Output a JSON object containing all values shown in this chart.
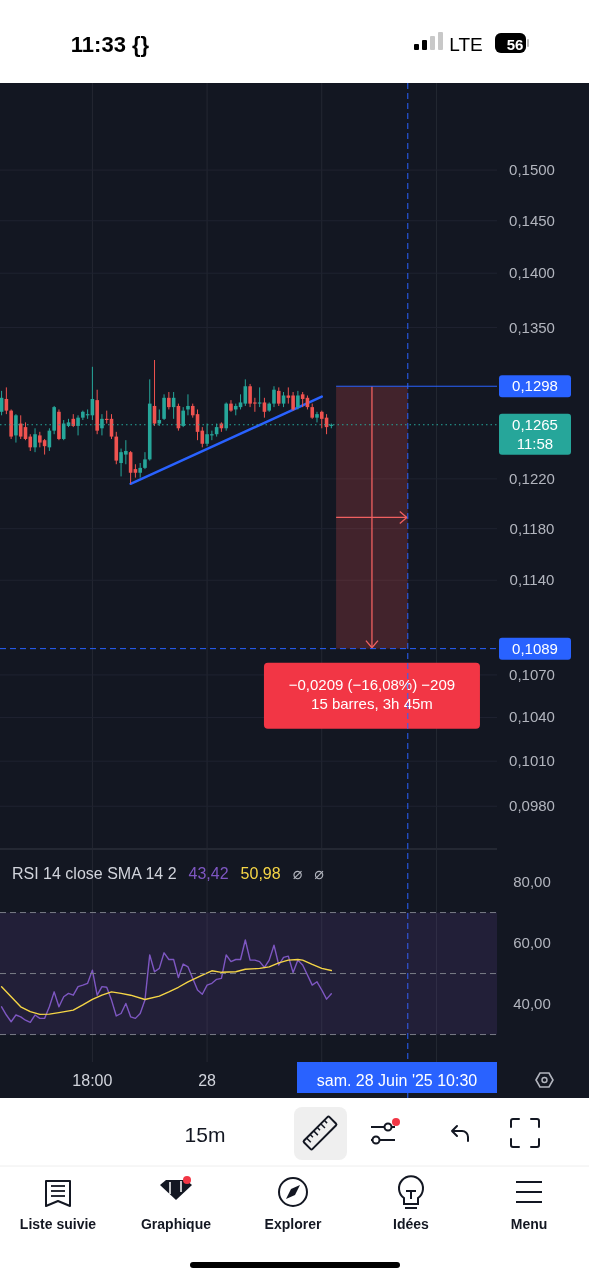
{
  "chart_data": [
    {
      "type": "candlestick",
      "log": true,
      "grid": true,
      "tick_labels": "y",
      "x": [
        "2025-06-27T13:15",
        "2025-06-27T13:30",
        "2025-06-27T13:45",
        "2025-06-27T14:00",
        "2025-06-27T14:15",
        "2025-06-27T14:30",
        "2025-06-27T14:45",
        "2025-06-27T15:00",
        "2025-06-27T15:15",
        "2025-06-27T15:30",
        "2025-06-27T15:45",
        "2025-06-27T16:00",
        "2025-06-27T16:15",
        "2025-06-27T16:30",
        "2025-06-27T16:45",
        "2025-06-27T17:00",
        "2025-06-27T17:15",
        "2025-06-27T17:30",
        "2025-06-27T17:45",
        "2025-06-27T18:00",
        "2025-06-27T18:15",
        "2025-06-27T18:30",
        "2025-06-27T18:45",
        "2025-06-27T19:00",
        "2025-06-27T19:15",
        "2025-06-27T19:30",
        "2025-06-27T19:45",
        "2025-06-27T20:00",
        "2025-06-27T20:15",
        "2025-06-27T20:30",
        "2025-06-27T20:45",
        "2025-06-27T21:00",
        "2025-06-27T21:15",
        "2025-06-27T21:30",
        "2025-06-27T21:45",
        "2025-06-27T22:00",
        "2025-06-27T22:15",
        "2025-06-27T22:30",
        "2025-06-27T22:45",
        "2025-06-27T23:00",
        "2025-06-27T23:15",
        "2025-06-27T23:30",
        "2025-06-27T23:45",
        "2025-06-28T00:00",
        "2025-06-28T00:15",
        "2025-06-28T00:30",
        "2025-06-28T00:45",
        "2025-06-28T01:00",
        "2025-06-28T01:15",
        "2025-06-28T01:30",
        "2025-06-28T01:45",
        "2025-06-28T02:00",
        "2025-06-28T02:15",
        "2025-06-28T02:30",
        "2025-06-28T02:45",
        "2025-06-28T03:00",
        "2025-06-28T03:15",
        "2025-06-28T03:30",
        "2025-06-28T03:45",
        "2025-06-28T04:00",
        "2025-06-28T04:15",
        "2025-06-28T04:30",
        "2025-06-28T04:45",
        "2025-06-28T05:00",
        "2025-06-28T05:15",
        "2025-06-28T05:30",
        "2025-06-28T05:45",
        "2025-06-28T06:00",
        "2025-06-28T06:15",
        "2025-06-28T06:30"
      ],
      "ohlc": [
        [
          0.1276,
          0.1294,
          0.1273,
          0.1288
        ],
        [
          0.1287,
          0.1297,
          0.1274,
          0.1277
        ],
        [
          0.1277,
          0.1278,
          0.1253,
          0.1255
        ],
        [
          0.1256,
          0.1274,
          0.125,
          0.1273
        ],
        [
          0.1266,
          0.1273,
          0.1253,
          0.1255
        ],
        [
          0.1263,
          0.1267,
          0.1252,
          0.1253
        ],
        [
          0.1255,
          0.1257,
          0.1243,
          0.1246
        ],
        [
          0.1246,
          0.1262,
          0.1242,
          0.1257
        ],
        [
          0.1256,
          0.1259,
          0.1246,
          0.125
        ],
        [
          0.1252,
          0.1253,
          0.124,
          0.1247
        ],
        [
          0.1246,
          0.1262,
          0.1243,
          0.126
        ],
        [
          0.126,
          0.1281,
          0.1257,
          0.128
        ],
        [
          0.1276,
          0.1278,
          0.1252,
          0.1253
        ],
        [
          0.1253,
          0.1269,
          0.1252,
          0.1266
        ],
        [
          0.1264,
          0.127,
          0.1263,
          0.1267
        ],
        [
          0.127,
          0.1274,
          0.1263,
          0.1264
        ],
        [
          0.1264,
          0.1273,
          0.1256,
          0.1271
        ],
        [
          0.1271,
          0.1277,
          0.1269,
          0.1276
        ],
        [
          0.1273,
          0.1278,
          0.127,
          0.1274
        ],
        [
          0.1273,
          0.1315,
          0.1269,
          0.1287
        ],
        [
          0.1286,
          0.1295,
          0.1257,
          0.126
        ],
        [
          0.1262,
          0.1274,
          0.1256,
          0.127
        ],
        [
          0.127,
          0.1277,
          0.1266,
          0.1269
        ],
        [
          0.127,
          0.1274,
          0.1253,
          0.1255
        ],
        [
          0.1255,
          0.1259,
          0.1232,
          0.1235
        ],
        [
          0.1233,
          0.1245,
          0.1222,
          0.1242
        ],
        [
          0.124,
          0.1252,
          0.1232,
          0.1243
        ],
        [
          0.1242,
          0.1243,
          0.1216,
          0.1225
        ],
        [
          0.1228,
          0.1232,
          0.1221,
          0.1225
        ],
        [
          0.1225,
          0.1233,
          0.1221,
          0.1229
        ],
        [
          0.1229,
          0.1242,
          0.1228,
          0.1236
        ],
        [
          0.1236,
          0.1304,
          0.1235,
          0.1283
        ],
        [
          0.1281,
          0.1321,
          0.1264,
          0.1266
        ],
        [
          0.1266,
          0.1278,
          0.1264,
          0.1269
        ],
        [
          0.127,
          0.1291,
          0.1269,
          0.1288
        ],
        [
          0.1288,
          0.1293,
          0.1278,
          0.128
        ],
        [
          0.128,
          0.1293,
          0.127,
          0.1288
        ],
        [
          0.1281,
          0.1283,
          0.126,
          0.1262
        ],
        [
          0.1264,
          0.128,
          0.1263,
          0.1277
        ],
        [
          0.1278,
          0.1291,
          0.1273,
          0.1281
        ],
        [
          0.1281,
          0.1283,
          0.1271,
          0.1273
        ],
        [
          0.1274,
          0.1278,
          0.1252,
          0.1259
        ],
        [
          0.126,
          0.1263,
          0.1246,
          0.1249
        ],
        [
          0.1249,
          0.1266,
          0.1247,
          0.1257
        ],
        [
          0.1256,
          0.126,
          0.1252,
          0.1257
        ],
        [
          0.1257,
          0.1266,
          0.1255,
          0.1263
        ],
        [
          0.1266,
          0.1267,
          0.1259,
          0.1262
        ],
        [
          0.1262,
          0.1284,
          0.126,
          0.1283
        ],
        [
          0.1283,
          0.1286,
          0.1276,
          0.1277
        ],
        [
          0.1278,
          0.1283,
          0.1273,
          0.1281
        ],
        [
          0.128,
          0.1291,
          0.1278,
          0.1284
        ],
        [
          0.1283,
          0.1304,
          0.1281,
          0.1298
        ],
        [
          0.1298,
          0.13,
          0.128,
          0.1283
        ],
        [
          0.1284,
          0.1288,
          0.1276,
          0.1283
        ],
        [
          0.1283,
          0.1297,
          0.128,
          0.1284
        ],
        [
          0.1284,
          0.1288,
          0.1271,
          0.1276
        ],
        [
          0.1277,
          0.1284,
          0.1276,
          0.1283
        ],
        [
          0.1283,
          0.1298,
          0.128,
          0.1295
        ],
        [
          0.1294,
          0.1297,
          0.1281,
          0.1283
        ],
        [
          0.1283,
          0.1293,
          0.128,
          0.129
        ],
        [
          0.129,
          0.1297,
          0.1283,
          0.1288
        ],
        [
          0.129,
          0.1293,
          0.1277,
          0.1278
        ],
        [
          0.128,
          0.1294,
          0.1278,
          0.129
        ],
        [
          0.1291,
          0.1293,
          0.128,
          0.1287
        ],
        [
          0.1288,
          0.129,
          0.1278,
          0.128
        ],
        [
          0.128,
          0.1283,
          0.127,
          0.1271
        ],
        [
          0.1271,
          0.1276,
          0.1267,
          0.1274
        ],
        [
          0.1276,
          0.1277,
          0.1262,
          0.127
        ],
        [
          0.1271,
          0.1274,
          0.1257,
          0.1263
        ],
        [
          0.1264,
          0.1266,
          0.1262,
          0.1265
        ]
      ],
      "series": [
        {
          "type": "line",
          "color": "#2962ff",
          "x": [
            "2025-06-27T20:00",
            "2025-06-28T06:00"
          ],
          "values": [
            0.1216,
            0.1289
          ]
        }
      ],
      "xlim": [
        "2025-06-27T13:10",
        "2025-06-28T15:10"
      ],
      "ylim": [
        0.0953,
        0.159
      ],
      "xticks": [
        {
          "value": "2025-06-27T18:00",
          "label": null
        },
        {
          "value": "2025-06-28T00:00",
          "label": null
        },
        {
          "value": "2025-06-28T06:00",
          "label": null
        },
        {
          "value": "2025-06-28T12:00",
          "label": null
        }
      ],
      "yticks": [
        {
          "value": 0.098,
          "label": "0,0980"
        },
        {
          "value": 0.101,
          "label": "0,1010"
        },
        {
          "value": 0.104,
          "label": "0,1040"
        },
        {
          "value": 0.107,
          "label": "0,1070"
        },
        {
          "value": 0.114,
          "label": "0,1140"
        },
        {
          "value": 0.118,
          "label": "0,1180"
        },
        {
          "value": 0.122,
          "label": "0,1220"
        },
        {
          "value": 0.135,
          "label": "0,1350"
        },
        {
          "value": 0.14,
          "label": "0,1400"
        },
        {
          "value": 0.145,
          "label": "0,1450"
        },
        {
          "value": 0.15,
          "label": "0,1500"
        }
      ],
      "ref_lines": [
        {
          "axis": "y",
          "value": 0.1298,
          "label": "0,1298",
          "color": "#2962ff",
          "line_style": "solid"
        },
        {
          "axis": "y",
          "value": 0.1265,
          "label": "0,1265\n11:58",
          "color": "#26a69a",
          "line_style": "dotted"
        },
        {
          "axis": "y",
          "value": 0.1089,
          "label": "0,1089",
          "color": "#2962ff",
          "line_style": "dashed"
        },
        {
          "axis": "x",
          "value": "2025-06-28T10:30",
          "label": "sam. 28 Juin '25 10:30",
          "color": "#2962ff",
          "line_style": "dashed"
        }
      ],
      "annotations": [
        {
          "text": "−0,0209 (−16,08%) −209\n15 barres, 3h 45m",
          "x": "2025-06-28T10:30",
          "y": 0.1089
        }
      ]
    },
    {
      "type": "line",
      "title": "RSI 14 close SMA 14 2",
      "grid": "x",
      "x": [
        "2025-06-27T13:15",
        "2025-06-27T13:30",
        "2025-06-27T13:45",
        "2025-06-27T14:00",
        "2025-06-27T14:15",
        "2025-06-27T14:30",
        "2025-06-27T14:45",
        "2025-06-27T15:00",
        "2025-06-27T15:15",
        "2025-06-27T15:30",
        "2025-06-27T15:45",
        "2025-06-27T16:00",
        "2025-06-27T16:15",
        "2025-06-27T16:30",
        "2025-06-27T16:45",
        "2025-06-27T17:00",
        "2025-06-27T17:15",
        "2025-06-27T17:30",
        "2025-06-27T17:45",
        "2025-06-27T18:00",
        "2025-06-27T18:15",
        "2025-06-27T18:30",
        "2025-06-27T18:45",
        "2025-06-27T19:00",
        "2025-06-27T19:15",
        "2025-06-27T19:30",
        "2025-06-27T19:45",
        "2025-06-27T20:00",
        "2025-06-27T20:15",
        "2025-06-27T20:30",
        "2025-06-27T20:45",
        "2025-06-27T21:00",
        "2025-06-27T21:15",
        "2025-06-27T21:30",
        "2025-06-27T21:45",
        "2025-06-27T22:00",
        "2025-06-27T22:15",
        "2025-06-27T22:30",
        "2025-06-27T22:45",
        "2025-06-27T23:00",
        "2025-06-27T23:15",
        "2025-06-27T23:30",
        "2025-06-27T23:45",
        "2025-06-28T00:00",
        "2025-06-28T00:15",
        "2025-06-28T00:30",
        "2025-06-28T00:45",
        "2025-06-28T01:00",
        "2025-06-28T01:15",
        "2025-06-28T01:30",
        "2025-06-28T01:45",
        "2025-06-28T02:00",
        "2025-06-28T02:15",
        "2025-06-28T02:30",
        "2025-06-28T02:45",
        "2025-06-28T03:00",
        "2025-06-28T03:15",
        "2025-06-28T03:30",
        "2025-06-28T03:45",
        "2025-06-28T04:00",
        "2025-06-28T04:15",
        "2025-06-28T04:30",
        "2025-06-28T04:45",
        "2025-06-28T05:00",
        "2025-06-28T05:15",
        "2025-06-28T05:30",
        "2025-06-28T05:45",
        "2025-06-28T06:00",
        "2025-06-28T06:15",
        "2025-06-28T06:30"
      ],
      "series": [
        {
          "color": "#7e57c2",
          "values": [
            39.1,
            36.4,
            34.2,
            36.4,
            35.8,
            34.7,
            34.0,
            36.4,
            35.3,
            35.3,
            39.1,
            44.0,
            39.1,
            42.4,
            43.5,
            42.9,
            45.7,
            46.2,
            46.8,
            51.1,
            42.9,
            45.7,
            45.5,
            41.3,
            36.1,
            36.9,
            40.2,
            35.8,
            35.3,
            36.9,
            41.3,
            56.1,
            50.6,
            51.7,
            56.8,
            54.6,
            54.6,
            48.7,
            53.1,
            52.2,
            48.4,
            44.6,
            43.2,
            46.2,
            46.8,
            48.1,
            48.4,
            56.1,
            53.9,
            54.6,
            54.6,
            61.0,
            54.4,
            54.4,
            53.9,
            52.0,
            54.4,
            59.3,
            52.8,
            55.3,
            55.7,
            50.3,
            54.4,
            52.8,
            49.5,
            46.2,
            47.3,
            44.6,
            41.6,
            43.4
          ]
        },
        {
          "color": "#f5d546",
          "x": [
            "2025-06-27T13:15",
            "2025-06-27T13:45",
            "2025-06-27T14:15",
            "2025-06-27T14:45",
            "2025-06-27T15:15",
            "2025-06-27T15:45",
            "2025-06-27T16:15",
            "2025-06-27T17:00",
            "2025-06-27T17:30",
            "2025-06-27T18:00",
            "2025-06-27T18:30",
            "2025-06-27T19:00",
            "2025-06-27T19:30",
            "2025-06-27T20:00",
            "2025-06-27T20:45",
            "2025-06-27T21:30",
            "2025-06-27T22:00",
            "2025-06-27T22:30",
            "2025-06-27T23:00",
            "2025-06-27T23:45",
            "2025-06-28T00:15",
            "2025-06-28T00:45",
            "2025-06-28T01:30",
            "2025-06-28T02:00",
            "2025-06-28T02:45",
            "2025-06-28T03:15",
            "2025-06-28T03:45",
            "2025-06-28T04:15",
            "2025-06-28T04:45",
            "2025-06-28T05:00",
            "2025-06-28T05:30",
            "2025-06-28T06:00",
            "2025-06-28T06:30"
          ],
          "values": [
            45.7,
            42.4,
            39.1,
            37.5,
            36.6,
            36.7,
            37.2,
            38.0,
            39.7,
            41.5,
            42.9,
            44.0,
            43.5,
            42.9,
            41.5,
            42.6,
            44.0,
            45.5,
            47.3,
            49.5,
            50.9,
            50.4,
            50.6,
            51.4,
            51.7,
            52.2,
            53.5,
            54.4,
            54.6,
            54.4,
            53.0,
            51.7,
            51.0
          ]
        }
      ],
      "xlim": [
        "2025-06-27T13:10",
        "2025-06-28T15:10"
      ],
      "ylim": [
        21,
        90.5
      ],
      "xticks": [
        {
          "value": "2025-06-27T18:00",
          "label": "18:00"
        },
        {
          "value": "2025-06-28T00:00",
          "label": "28"
        },
        {
          "value": "2025-06-28T06:00",
          "label": null
        },
        {
          "value": "2025-06-28T12:00",
          "label": null
        }
      ],
      "yticks": [
        {
          "value": 40,
          "label": "40,00"
        },
        {
          "value": 60,
          "label": "60,00"
        },
        {
          "value": 80,
          "label": "80,00"
        }
      ],
      "bands": [
        {
          "axis": "y",
          "from": 30,
          "to": 70,
          "color": "#7e57c2"
        }
      ],
      "ref_lines": [
        {
          "axis": "y",
          "value": 70,
          "color": "#787b86",
          "line_style": "dashed"
        },
        {
          "axis": "y",
          "value": 50,
          "color": "#787b86",
          "line_style": "dashed"
        },
        {
          "axis": "y",
          "value": 30,
          "color": "#787b86",
          "line_style": "dashed"
        }
      ],
      "annotations": [
        "43,42",
        "50,98",
        "⌀",
        "⌀"
      ]
    },
    {
      "type": "other",
      "annotations": [
        "11:33 {}",
        "LTE",
        "56",
        "15m",
        "Liste suivie",
        "Graphique",
        "Explorer",
        "Idées",
        "Menu"
      ]
    }
  ]
}
